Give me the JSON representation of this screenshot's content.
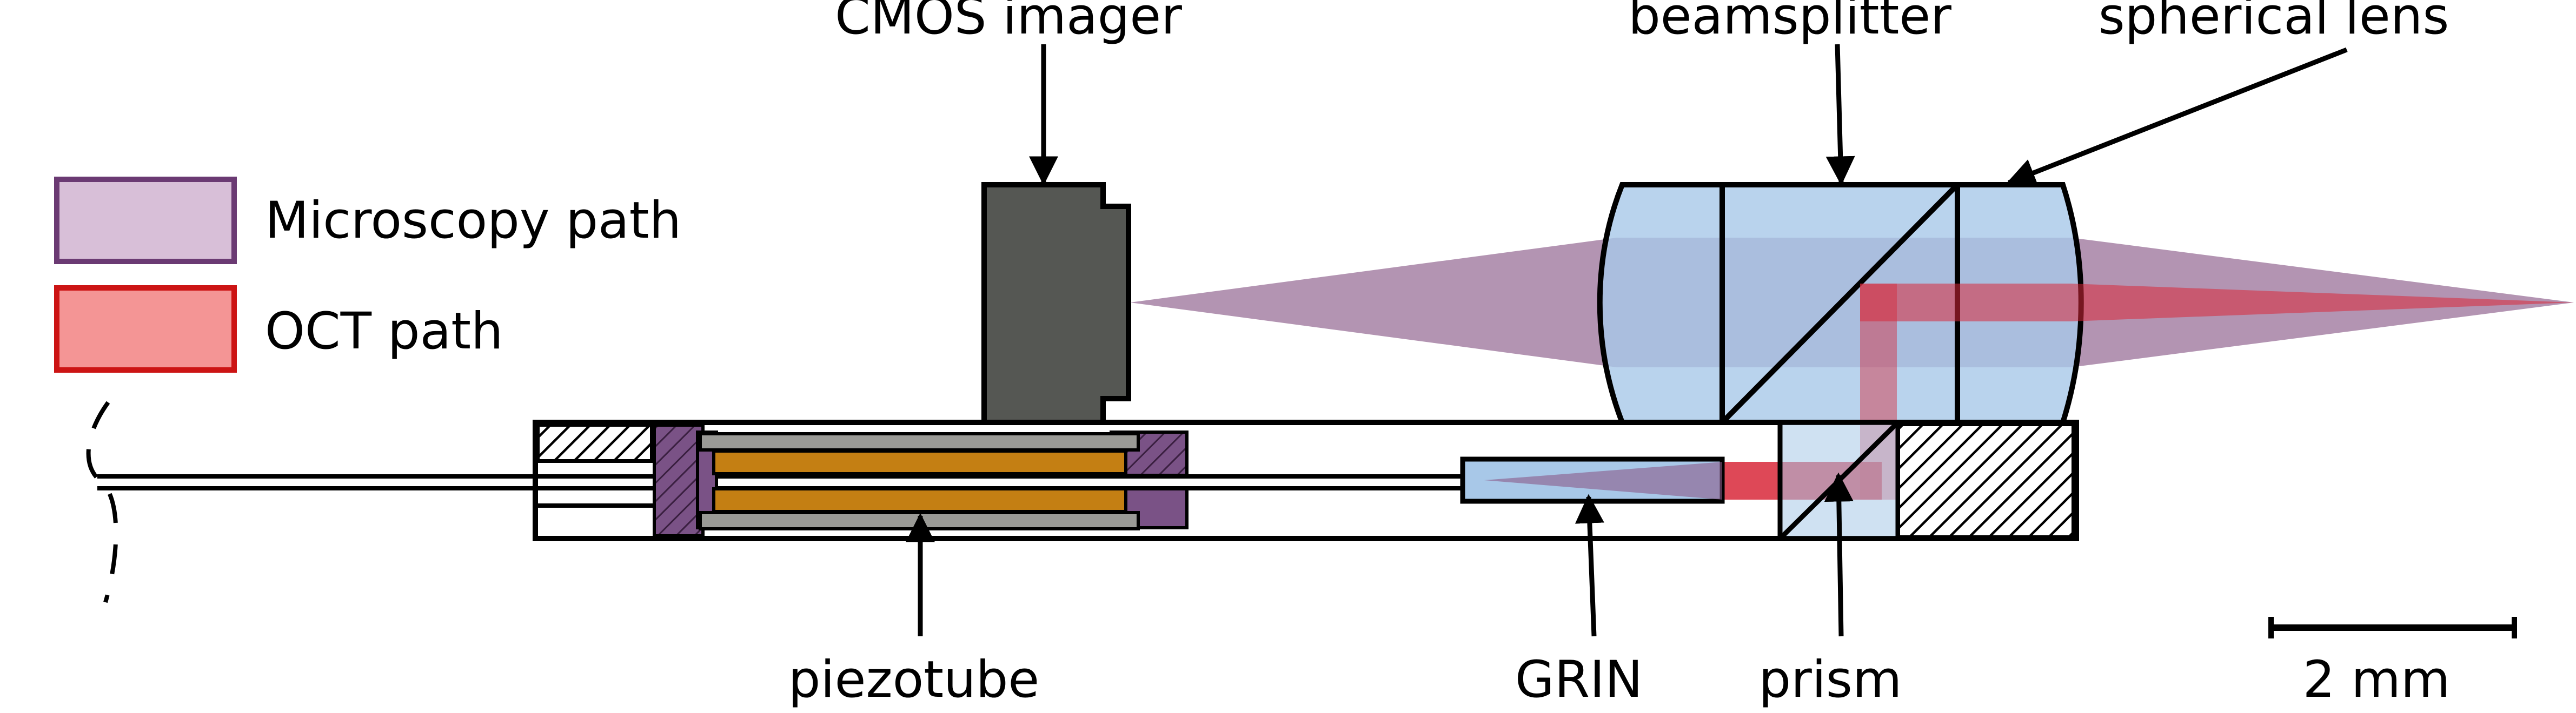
{
  "legend": {
    "items": [
      {
        "label": "Microscopy path",
        "fill": "#d8bfd8",
        "stroke": "#6b3a73"
      },
      {
        "label": "OCT path",
        "fill": "#f49595",
        "stroke": "#cc1414"
      }
    ]
  },
  "labels": {
    "cmos_imager": "CMOS imager",
    "beamsplitter": "beamsplitter",
    "spherical_lens": "spherical lens",
    "piezotube": "piezotube",
    "grin": "GRIN",
    "prism": "prism",
    "scale_bar": "2 mm"
  },
  "colors": {
    "microscopy_beam": "#8a5a88",
    "oct_beam": "#d8283a",
    "glass": "#a8c8e8",
    "cmos_body": "#555753",
    "piezo_core": "#c47f13",
    "piezo_shell": "#9a9a96",
    "holder": "#7a5286"
  }
}
